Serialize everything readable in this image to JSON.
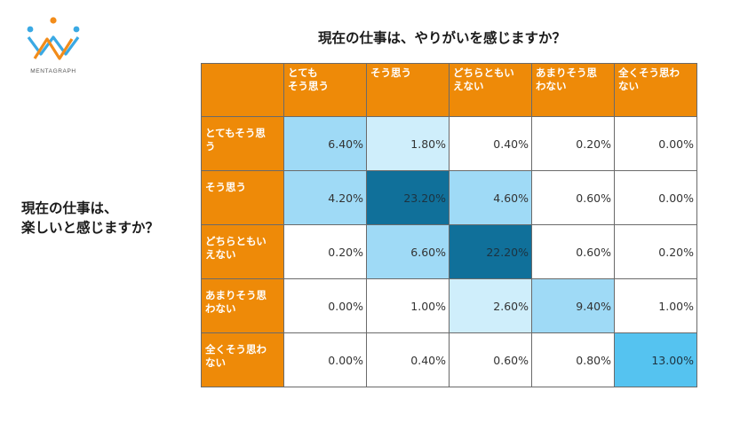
{
  "brand": {
    "name": "MENTAGRAPH",
    "colors": [
      "#3aa9e4",
      "#f28c1a",
      "#2b6f9e"
    ]
  },
  "chart_data": {
    "type": "table",
    "title_columns": "現在の仕事は、やりがいを感じますか？",
    "title_rows_lines": [
      "現在の仕事は、",
      "楽しいと感じますか？"
    ],
    "columns": [
      [
        "とても",
        "そう思う"
      ],
      [
        "そう思う"
      ],
      [
        "どちらともい",
        "えない"
      ],
      [
        "あまりそう思",
        "わない"
      ],
      [
        "全くそう思わ",
        "ない"
      ]
    ],
    "rows": [
      [
        "とてもそう思",
        "う"
      ],
      [
        "そう思う"
      ],
      [
        "どちらともい",
        "えない"
      ],
      [
        "あまりそう思",
        "わない"
      ],
      [
        "全くそう思わ",
        "ない"
      ]
    ],
    "values": [
      [
        6.4,
        1.8,
        0.4,
        0.2,
        0.0
      ],
      [
        4.2,
        23.2,
        4.6,
        0.6,
        0.0
      ],
      [
        0.2,
        6.6,
        22.2,
        0.6,
        0.2
      ],
      [
        0.0,
        1.0,
        2.6,
        9.4,
        1.0
      ],
      [
        0.0,
        0.4,
        0.6,
        0.8,
        13.0
      ]
    ],
    "unit": "%",
    "header_color": "#ee8a08",
    "heat_colors": {
      "none": "#ffffff",
      "light": "#cfeefb",
      "medium": "#9fdaf6",
      "bright": "#55c3f0",
      "dark": "#10709a"
    }
  }
}
